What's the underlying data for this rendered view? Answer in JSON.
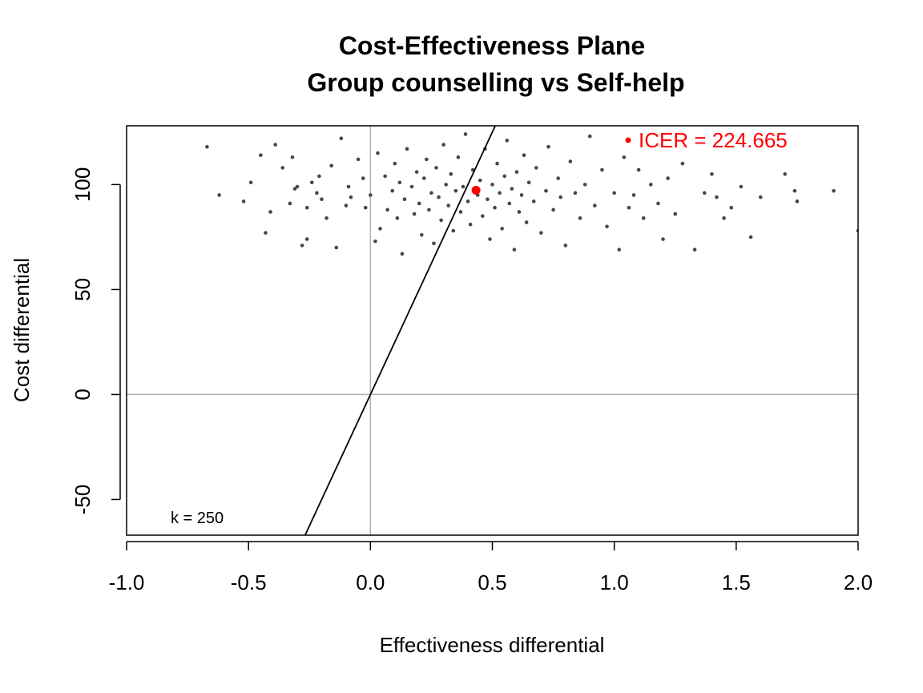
{
  "chart_data": {
    "type": "scatter",
    "title": "Cost-Effectiveness Plane",
    "subtitle": "Group counselling vs Self-help",
    "xlabel": "Effectiveness differential",
    "ylabel": "Cost differential",
    "xlim": [
      -1.0,
      2.0
    ],
    "ylim": [
      -67,
      128
    ],
    "x_ticks": [
      -1.0,
      -0.5,
      0.0,
      0.5,
      1.0,
      1.5,
      2.0
    ],
    "x_tick_labels": [
      "-1.0",
      "-0.5",
      "0.0",
      "0.5",
      "1.0",
      "1.5",
      "2.0"
    ],
    "y_ticks": [
      -50,
      0,
      50,
      100
    ],
    "y_tick_labels": [
      "-50",
      "0",
      "50",
      "100"
    ],
    "grid": false,
    "reference_lines": {
      "x": 0,
      "y": 0,
      "color": "#b0b0b0"
    },
    "wtp_line": {
      "k": 250,
      "label": "k = 250",
      "color": "#000000"
    },
    "icer": {
      "x": 0.433,
      "y": 97.3,
      "value": 224.665,
      "label": "ICER = 224.665",
      "color": "#ff0000",
      "legend_position": "top-right"
    },
    "point_color": "#474747",
    "series": [
      {
        "points": [
          [
            -0.67,
            118
          ],
          [
            -0.62,
            95
          ],
          [
            -0.52,
            92
          ],
          [
            -0.49,
            101
          ],
          [
            -0.45,
            114
          ],
          [
            -0.43,
            77
          ],
          [
            -0.41,
            87
          ],
          [
            -0.39,
            119
          ],
          [
            -0.36,
            108
          ],
          [
            -0.33,
            91
          ],
          [
            -0.32,
            113
          ],
          [
            -0.31,
            98
          ],
          [
            -0.3,
            99
          ],
          [
            -0.28,
            71
          ],
          [
            -0.26,
            74
          ],
          [
            -0.26,
            89
          ],
          [
            -0.24,
            101
          ],
          [
            -0.22,
            96
          ],
          [
            -0.21,
            104
          ],
          [
            -0.2,
            93
          ],
          [
            -0.18,
            84
          ],
          [
            -0.16,
            109
          ],
          [
            -0.14,
            70
          ],
          [
            -0.12,
            122
          ],
          [
            -0.1,
            90
          ],
          [
            -0.09,
            99
          ],
          [
            -0.08,
            94
          ],
          [
            -0.05,
            112
          ],
          [
            -0.03,
            103
          ],
          [
            -0.02,
            89
          ],
          [
            0.0,
            95
          ],
          [
            0.02,
            73
          ],
          [
            0.03,
            115
          ],
          [
            0.04,
            79
          ],
          [
            0.06,
            104
          ],
          [
            0.07,
            88
          ],
          [
            0.09,
            97
          ],
          [
            0.1,
            110
          ],
          [
            0.11,
            84
          ],
          [
            0.12,
            101
          ],
          [
            0.13,
            67
          ],
          [
            0.14,
            93
          ],
          [
            0.15,
            117
          ],
          [
            0.17,
            99
          ],
          [
            0.18,
            86
          ],
          [
            0.19,
            106
          ],
          [
            0.2,
            91
          ],
          [
            0.21,
            76
          ],
          [
            0.22,
            103
          ],
          [
            0.23,
            112
          ],
          [
            0.24,
            88
          ],
          [
            0.25,
            96
          ],
          [
            0.26,
            72
          ],
          [
            0.27,
            108
          ],
          [
            0.28,
            94
          ],
          [
            0.29,
            83
          ],
          [
            0.3,
            119
          ],
          [
            0.31,
            100
          ],
          [
            0.32,
            90
          ],
          [
            0.33,
            105
          ],
          [
            0.34,
            78
          ],
          [
            0.35,
            97
          ],
          [
            0.36,
            113
          ],
          [
            0.37,
            87
          ],
          [
            0.38,
            99
          ],
          [
            0.39,
            124
          ],
          [
            0.4,
            92
          ],
          [
            0.41,
            81
          ],
          [
            0.42,
            107
          ],
          [
            0.44,
            95
          ],
          [
            0.45,
            102
          ],
          [
            0.46,
            85
          ],
          [
            0.47,
            117
          ],
          [
            0.48,
            93
          ],
          [
            0.49,
            74
          ],
          [
            0.5,
            100
          ],
          [
            0.51,
            89
          ],
          [
            0.52,
            110
          ],
          [
            0.53,
            96
          ],
          [
            0.54,
            79
          ],
          [
            0.55,
            104
          ],
          [
            0.56,
            121
          ],
          [
            0.57,
            91
          ],
          [
            0.58,
            98
          ],
          [
            0.59,
            69
          ],
          [
            0.6,
            106
          ],
          [
            0.61,
            87
          ],
          [
            0.62,
            95
          ],
          [
            0.63,
            114
          ],
          [
            0.64,
            82
          ],
          [
            0.65,
            101
          ],
          [
            0.67,
            92
          ],
          [
            0.68,
            108
          ],
          [
            0.7,
            77
          ],
          [
            0.72,
            97
          ],
          [
            0.73,
            118
          ],
          [
            0.75,
            88
          ],
          [
            0.77,
            103
          ],
          [
            0.78,
            94
          ],
          [
            0.8,
            71
          ],
          [
            0.82,
            111
          ],
          [
            0.84,
            96
          ],
          [
            0.86,
            84
          ],
          [
            0.88,
            100
          ],
          [
            0.9,
            123
          ],
          [
            0.92,
            90
          ],
          [
            0.95,
            107
          ],
          [
            0.97,
            80
          ],
          [
            1.0,
            96
          ],
          [
            1.02,
            69
          ],
          [
            1.04,
            113
          ],
          [
            1.06,
            89
          ],
          [
            1.08,
            95
          ],
          [
            1.1,
            107
          ],
          [
            1.12,
            84
          ],
          [
            1.15,
            100
          ],
          [
            1.18,
            91
          ],
          [
            1.2,
            74
          ],
          [
            1.22,
            103
          ],
          [
            1.25,
            86
          ],
          [
            1.28,
            110
          ],
          [
            1.33,
            69
          ],
          [
            1.37,
            96
          ],
          [
            1.4,
            105
          ],
          [
            1.42,
            94
          ],
          [
            1.45,
            84
          ],
          [
            1.48,
            89
          ],
          [
            1.52,
            99
          ],
          [
            1.56,
            75
          ],
          [
            1.6,
            94
          ],
          [
            1.7,
            105
          ],
          [
            1.74,
            97
          ],
          [
            1.75,
            92
          ],
          [
            1.9,
            97
          ],
          [
            2.0,
            78
          ]
        ]
      }
    ]
  }
}
